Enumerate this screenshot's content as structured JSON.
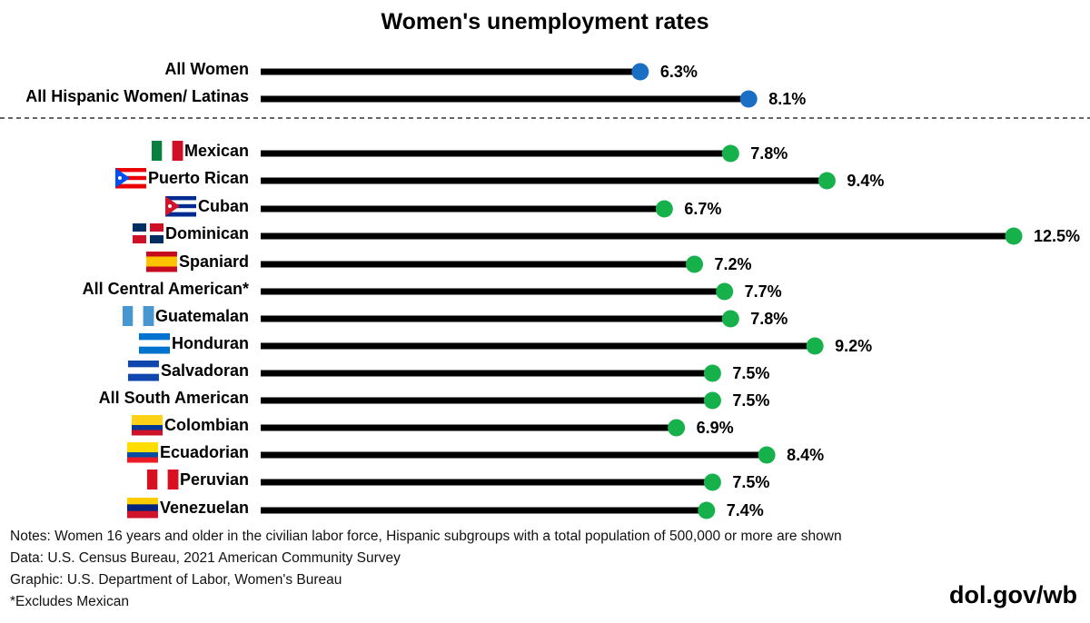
{
  "chart_data": {
    "type": "bar",
    "style": "lollipop",
    "title": "Women's unemployment rates",
    "xlim": [
      0,
      12.5
    ],
    "grid": false,
    "unit": "%",
    "groups": [
      {
        "color": "#1A6FC4",
        "categories": [
          "All Women",
          "All Hispanic Women/ Latinas"
        ],
        "values": [
          6.3,
          8.1
        ],
        "labels": [
          "6.3%",
          "8.1%"
        ],
        "flags": [
          null,
          null
        ]
      },
      {
        "color": "#17B14B",
        "categories": [
          "Mexican",
          "Puerto Rican",
          "Cuban",
          "Dominican",
          "Spaniard",
          "All Central American*",
          "Guatemalan",
          "Honduran",
          "Salvadoran",
          "All South American",
          "Colombian",
          "Ecuadorian",
          "Peruvian",
          "Venezuelan"
        ],
        "values": [
          7.8,
          9.4,
          6.7,
          12.5,
          7.2,
          7.7,
          7.8,
          9.2,
          7.5,
          7.5,
          6.9,
          8.4,
          7.5,
          7.4
        ],
        "labels": [
          "7.8%",
          "9.4%",
          "6.7%",
          "12.5%",
          "7.2%",
          "7.7%",
          "7.8%",
          "9.2%",
          "7.5%",
          "7.5%",
          "6.9%",
          "8.4%",
          "7.5%",
          "7.4%"
        ],
        "flags": [
          "mexico-flag-icon",
          "puerto-rico-flag-icon",
          "cuba-flag-icon",
          "dominican-republic-flag-icon",
          "spain-flag-icon",
          null,
          "guatemala-flag-icon",
          "honduras-flag-icon",
          "el-salvador-flag-icon",
          null,
          "colombia-flag-icon",
          "ecuador-flag-icon",
          "peru-flag-icon",
          "venezuela-flag-icon"
        ]
      }
    ]
  },
  "notes": [
    "Notes: Women 16 years and older in the civilian labor force, Hispanic subgroups with a total population of 500,000 or more are shown",
    "Data: U.S. Census Bureau, 2021 American Community Survey",
    "Graphic: U.S. Department of Labor, Women's Bureau",
    "*Excludes Mexican"
  ],
  "brand": "dol.gov/wb"
}
